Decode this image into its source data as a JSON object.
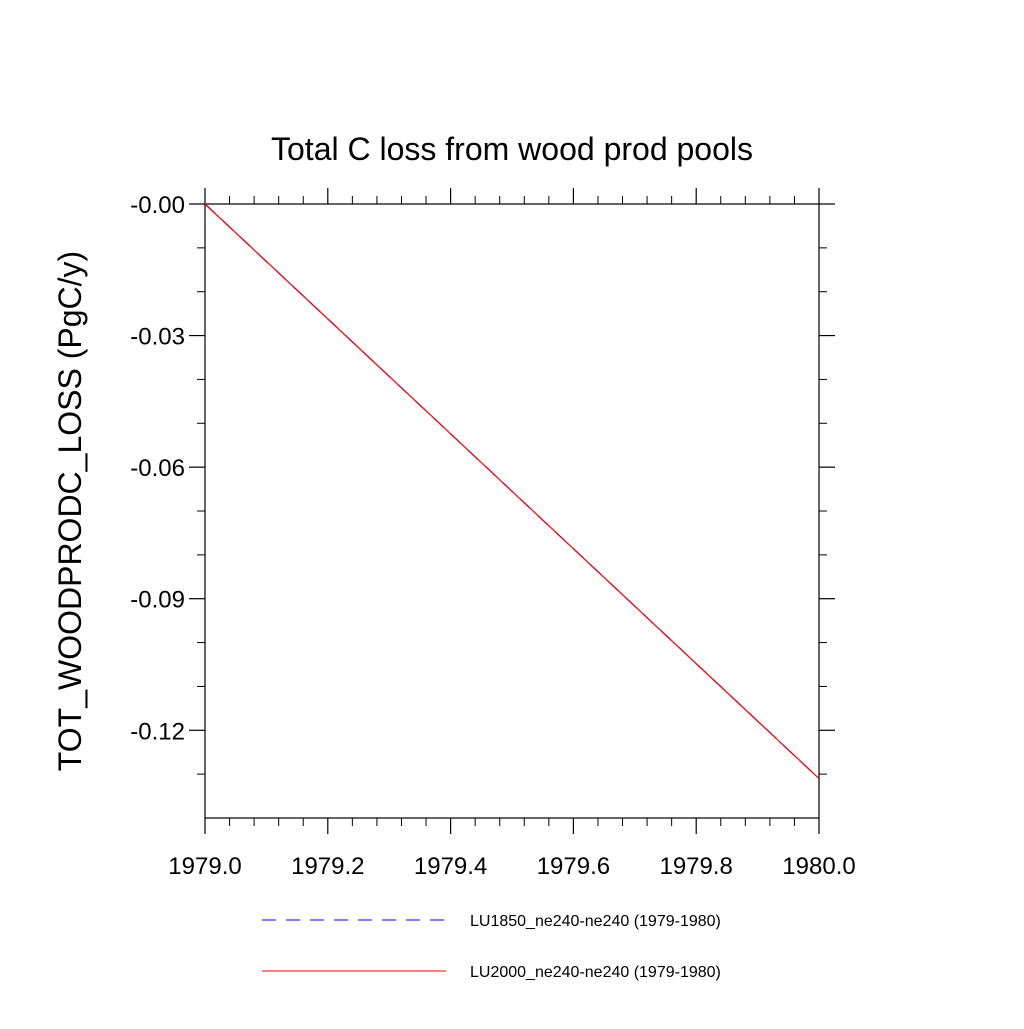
{
  "chart_data": {
    "type": "line",
    "title": "Total C loss from wood prod pools",
    "xlabel": "",
    "ylabel": "TOT_WOODPRODC_LOSS  (PgC/y)",
    "xlim": [
      1979.0,
      1980.0
    ],
    "ylim": [
      -0.14,
      0.0
    ],
    "x_ticks": [
      1979.0,
      1979.2,
      1979.4,
      1979.6,
      1979.8,
      1980.0
    ],
    "x_tick_labels": [
      "1979.0",
      "1979.2",
      "1979.4",
      "1979.6",
      "1979.8",
      "1980.0"
    ],
    "y_ticks": [
      0.0,
      -0.03,
      -0.06,
      -0.09,
      -0.12
    ],
    "y_tick_labels": [
      "-0.00",
      "-0.03",
      "-0.06",
      "-0.09",
      "-0.12"
    ],
    "y_minor_ticks": [
      -0.01,
      -0.02,
      -0.04,
      -0.05,
      -0.07,
      -0.08,
      -0.1,
      -0.11,
      -0.13
    ],
    "x_minor_per_major": 4,
    "grid": false,
    "legend_position": "bottom",
    "series": [
      {
        "name": "LU1850_ne240-ne240 (1979-1980)",
        "color": "#0000ff",
        "style": "dashed",
        "x": [
          1979.0,
          1980.0
        ],
        "y": [
          0.0,
          -0.131
        ]
      },
      {
        "name": "LU2000_ne240-ne240 (1979-1980)",
        "color": "#ff0000",
        "style": "solid",
        "x": [
          1979.0,
          1980.0
        ],
        "y": [
          0.0,
          -0.131
        ]
      }
    ]
  }
}
